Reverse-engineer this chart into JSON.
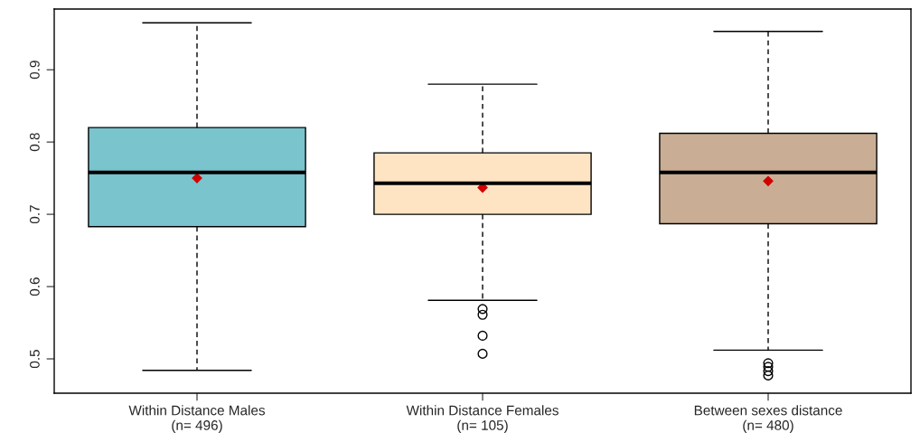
{
  "chart_data": {
    "type": "box",
    "categories": [
      "Within Distance Males\n(n= 496)",
      "Within Distance Females\n(n= 105)",
      "Between sexes distance\n(n= 480)"
    ],
    "boxes": [
      {
        "low": 0.484,
        "q1": 0.683,
        "median": 0.758,
        "q3": 0.82,
        "high": 0.965,
        "mean": 0.75
      },
      {
        "low": 0.581,
        "q1": 0.7,
        "median": 0.743,
        "q3": 0.785,
        "high": 0.88,
        "mean": 0.737,
        "outliers": [
          0.569,
          0.561,
          0.532,
          0.507
        ]
      },
      {
        "low": 0.512,
        "q1": 0.687,
        "median": 0.758,
        "q3": 0.812,
        "high": 0.953,
        "mean": 0.746,
        "outliers": [
          0.494,
          0.489,
          0.483,
          0.477
        ]
      }
    ],
    "colors": [
      "#7ac4ce",
      "#ffe4c4",
      "#c9ae95"
    ],
    "ylim": [
      0.4525,
      0.984
    ],
    "yticks": [
      0.5,
      0.6,
      0.7,
      0.8,
      0.9
    ],
    "grid": false
  }
}
